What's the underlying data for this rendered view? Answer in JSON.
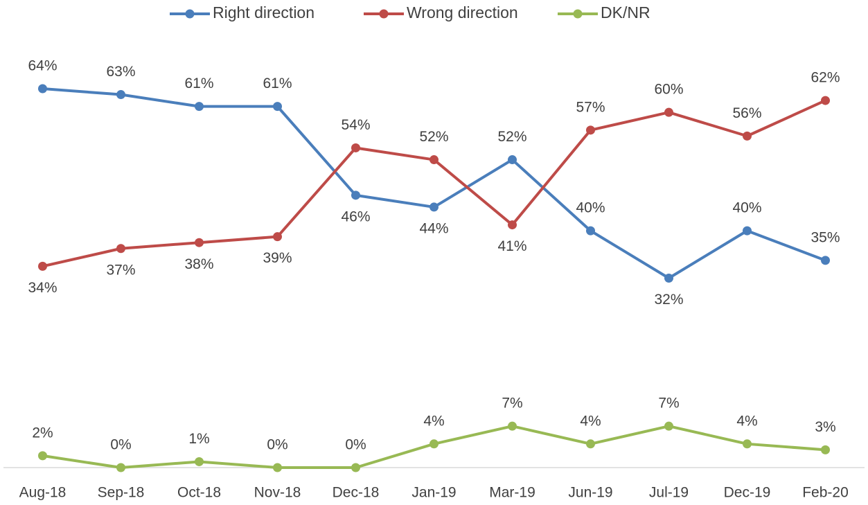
{
  "chart_data": {
    "type": "line",
    "categories": [
      "Aug-18",
      "Sep-18",
      "Oct-18",
      "Nov-18",
      "Dec-18",
      "Jan-19",
      "Mar-19",
      "Jun-19",
      "Jul-19",
      "Dec-19",
      "Feb-20"
    ],
    "series": [
      {
        "name": "Right direction",
        "color": "#4a7ebb",
        "values": [
          64,
          63,
          61,
          61,
          46,
          44,
          52,
          40,
          32,
          40,
          35
        ],
        "value_labels": [
          "64%",
          "63%",
          "61%",
          "61%",
          "46%",
          "44%",
          "52%",
          "40%",
          "32%",
          "40%",
          "35%"
        ]
      },
      {
        "name": "Wrong direction",
        "color": "#be4b48",
        "values": [
          34,
          37,
          38,
          39,
          54,
          52,
          41,
          57,
          60,
          56,
          62
        ],
        "value_labels": [
          "34%",
          "37%",
          "38%",
          "39%",
          "54%",
          "52%",
          "41%",
          "57%",
          "60%",
          "56%",
          "62%"
        ]
      },
      {
        "name": "DK/NR",
        "color": "#98b954",
        "values": [
          2,
          0,
          1,
          0,
          0,
          4,
          7,
          4,
          7,
          4,
          3
        ],
        "value_labels": [
          "2%",
          "0%",
          "1%",
          "0%",
          "0%",
          "4%",
          "7%",
          "4%",
          "7%",
          "4%",
          "3%"
        ]
      }
    ],
    "ylim": [
      0,
      70
    ],
    "legend": "top"
  }
}
